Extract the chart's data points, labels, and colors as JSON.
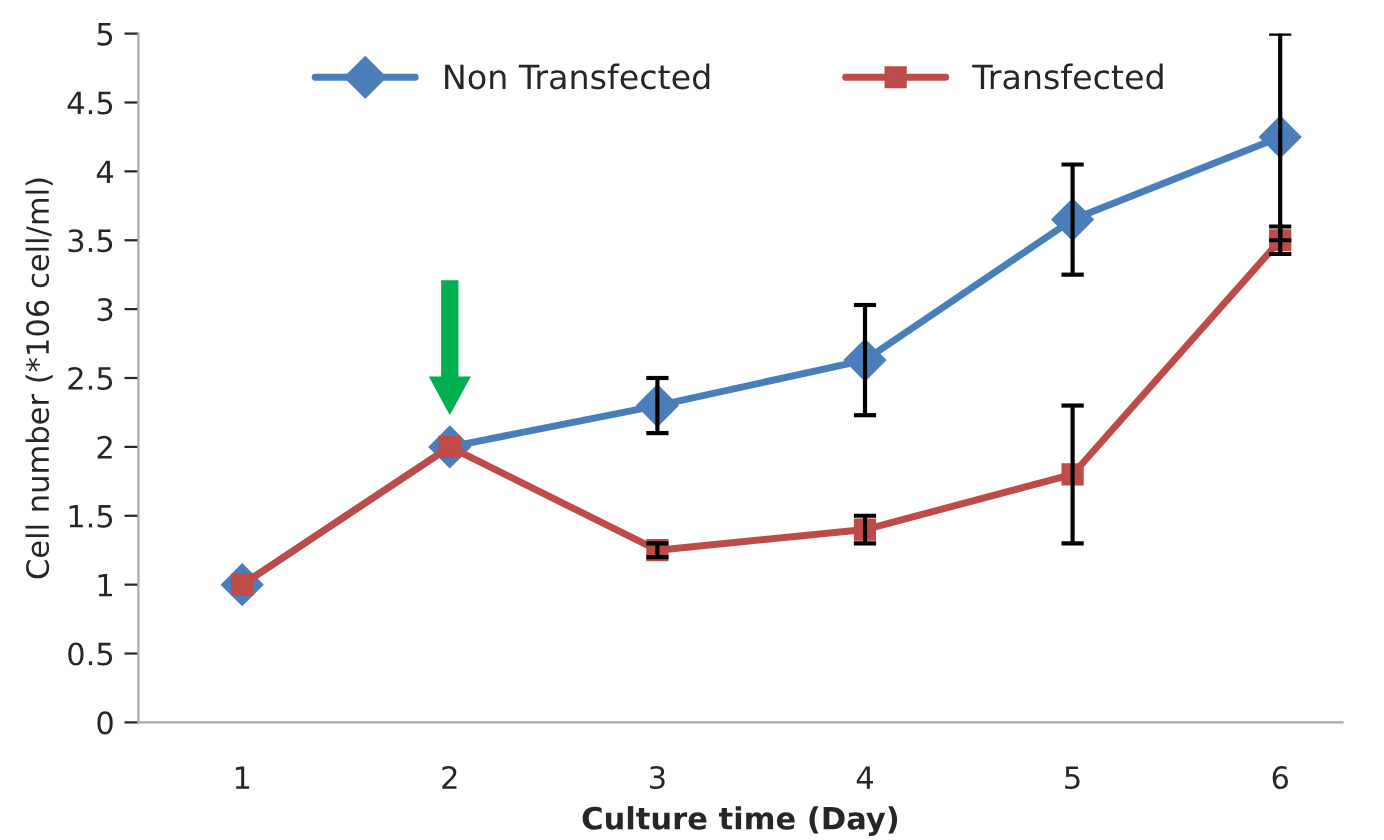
{
  "chart_data": {
    "type": "line",
    "xlabel": "Culture time (Day)",
    "ylabel": "Cell number (*106 cell/ml)",
    "categories": [
      "1",
      "2",
      "3",
      "4",
      "5",
      "6"
    ],
    "series": [
      {
        "name": "Non Transfected",
        "color": "#4a7ebb",
        "marker": "diamond",
        "values": [
          1,
          2,
          2.3,
          2.63,
          3.65,
          4.25
        ],
        "errors": [
          null,
          null,
          0.2,
          0.4,
          0.4,
          0.75
        ]
      },
      {
        "name": "Transfected",
        "color": "#be4b48",
        "marker": "square",
        "values": [
          1,
          2,
          1.25,
          1.4,
          1.8,
          3.5
        ],
        "errors": [
          null,
          null,
          0.05,
          0.1,
          0.5,
          0.1
        ]
      }
    ],
    "ylim": [
      0,
      5
    ],
    "yticks": [
      0,
      0.5,
      1,
      1.5,
      2,
      2.5,
      3,
      3.5,
      4,
      4.5,
      5
    ],
    "grid": false,
    "legend": "top",
    "line_style": "solid"
  }
}
